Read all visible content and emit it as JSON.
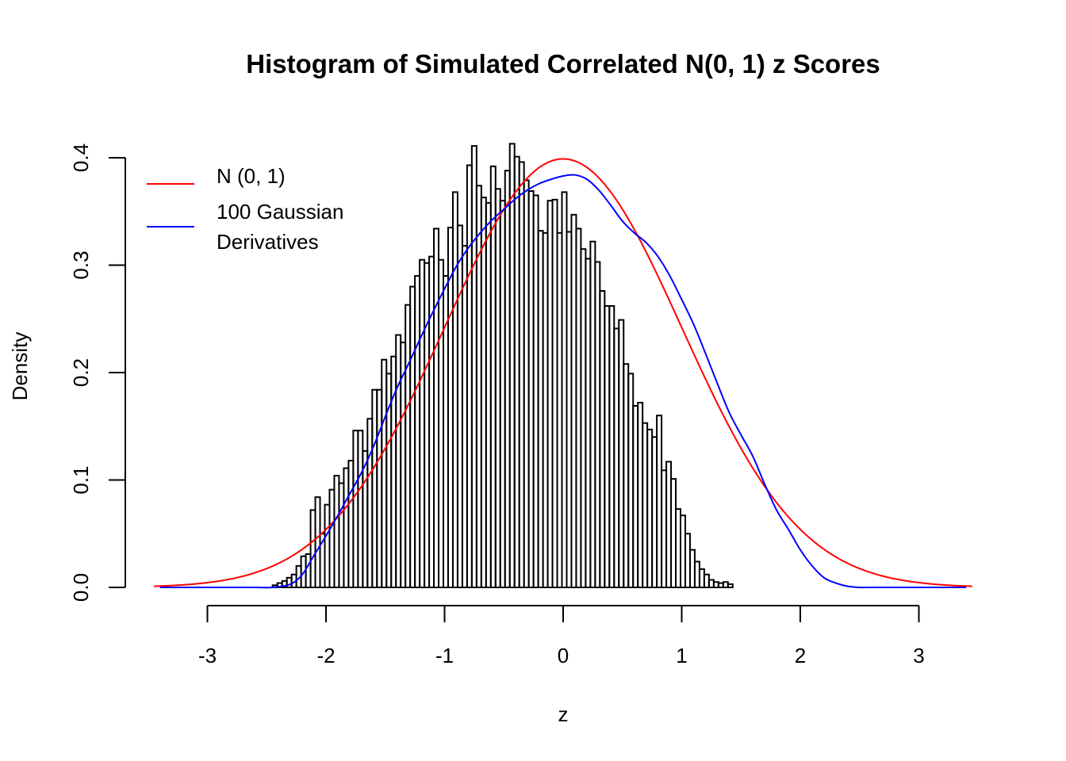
{
  "chart_data": {
    "type": "histogram",
    "title": "Histogram of Simulated Correlated N(0, 1) z Scores",
    "xlabel": "z",
    "ylabel": "Density",
    "xlim": [
      -3.45,
      3.45
    ],
    "ylim": [
      0,
      0.41
    ],
    "x_ticks": [
      -3,
      -2,
      -1,
      0,
      1,
      2,
      3
    ],
    "x_tick_labels": [
      "-3",
      "-2",
      "-1",
      "0",
      "1",
      "2",
      "3"
    ],
    "y_ticks": [
      0,
      0.1,
      0.2,
      0.3,
      0.4
    ],
    "y_tick_labels": [
      "0.0",
      "0.1",
      "0.2",
      "0.3",
      "0.4"
    ],
    "grid": false,
    "legend_position": "top-left",
    "bin_start": -2.45,
    "bin_width": 0.04,
    "bin_densities": [
      0.002,
      0.004,
      0.006,
      0.009,
      0.012,
      0.02,
      0.029,
      0.031,
      0.072,
      0.084,
      0.05,
      0.077,
      0.091,
      0.104,
      0.097,
      0.111,
      0.118,
      0.146,
      0.146,
      0.127,
      0.157,
      0.184,
      0.184,
      0.212,
      0.199,
      0.215,
      0.235,
      0.228,
      0.263,
      0.28,
      0.29,
      0.305,
      0.302,
      0.308,
      0.334,
      0.305,
      0.29,
      0.335,
      0.368,
      0.337,
      0.318,
      0.393,
      0.411,
      0.374,
      0.363,
      0.358,
      0.392,
      0.371,
      0.36,
      0.388,
      0.413,
      0.401,
      0.396,
      0.379,
      0.369,
      0.365,
      0.332,
      0.33,
      0.36,
      0.361,
      0.33,
      0.368,
      0.331,
      0.347,
      0.334,
      0.315,
      0.306,
      0.322,
      0.303,
      0.276,
      0.262,
      0.262,
      0.241,
      0.249,
      0.208,
      0.199,
      0.169,
      0.172,
      0.153,
      0.147,
      0.14,
      0.16,
      0.109,
      0.117,
      0.101,
      0.073,
      0.067,
      0.05,
      0.035,
      0.024,
      0.017,
      0.012,
      0.007,
      0.005,
      0.004,
      0.005,
      0.003
    ],
    "series": [
      {
        "name": "N (0, 1)",
        "color": "#ff0000",
        "kind": "normal",
        "mean": 0,
        "sd": 1
      },
      {
        "name": "100 Gaussian\nDerivatives",
        "color": "#0000ff",
        "kind": "fitted",
        "x": [
          -3.4,
          -3.0,
          -2.8,
          -2.6,
          -2.45,
          -2.3,
          -2.2,
          -2.1,
          -2.0,
          -1.9,
          -1.8,
          -1.7,
          -1.6,
          -1.5,
          -1.4,
          -1.3,
          -1.2,
          -1.1,
          -1.0,
          -0.9,
          -0.8,
          -0.7,
          -0.6,
          -0.5,
          -0.4,
          -0.3,
          -0.2,
          -0.1,
          0.0,
          0.1,
          0.2,
          0.3,
          0.4,
          0.5,
          0.6,
          0.7,
          0.8,
          0.9,
          1.0,
          1.1,
          1.2,
          1.3,
          1.4,
          1.5,
          1.6,
          1.7,
          1.8,
          1.9,
          2.0,
          2.1,
          2.2,
          2.3,
          2.4,
          2.5,
          2.6,
          2.8,
          3.4
        ],
        "y": [
          0.0,
          0.0,
          0.0,
          0.0,
          0.0,
          0.003,
          0.012,
          0.03,
          0.048,
          0.067,
          0.087,
          0.107,
          0.131,
          0.159,
          0.186,
          0.209,
          0.233,
          0.256,
          0.278,
          0.299,
          0.316,
          0.33,
          0.342,
          0.352,
          0.362,
          0.37,
          0.376,
          0.38,
          0.383,
          0.384,
          0.38,
          0.37,
          0.356,
          0.341,
          0.33,
          0.321,
          0.308,
          0.29,
          0.268,
          0.245,
          0.218,
          0.19,
          0.163,
          0.142,
          0.122,
          0.096,
          0.072,
          0.054,
          0.035,
          0.02,
          0.009,
          0.004,
          0.001,
          0.0,
          0.0,
          0.0,
          0.0
        ]
      }
    ]
  }
}
